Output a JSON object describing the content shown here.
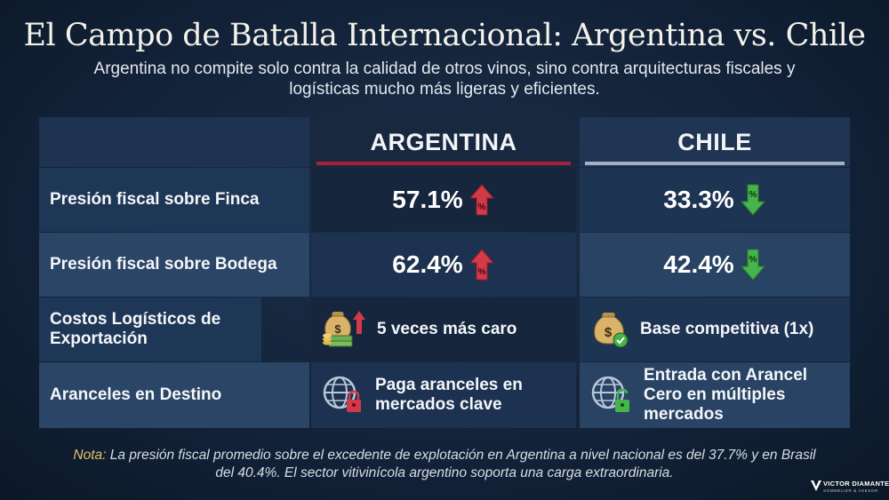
{
  "title": "El Campo de Batalla Internacional: Argentina vs. Chile",
  "subtitle": "Argentina no compite solo contra la calidad de otros vinos, sino contra arquitecturas fiscales y logísticas mucho más ligeras y eficientes.",
  "table": {
    "columns": [
      "ARGENTINA",
      "CHILE"
    ],
    "rows": [
      {
        "label": "Presión fiscal sobre Finca",
        "argentina": {
          "value": "57.1%",
          "icon": "red-up-arrow-percent-icon"
        },
        "chile": {
          "value": "33.3%",
          "icon": "green-down-arrow-percent-icon"
        }
      },
      {
        "label": "Presión fiscal sobre Bodega",
        "argentina": {
          "value": "62.4%",
          "icon": "red-up-arrow-percent-icon"
        },
        "chile": {
          "value": "42.4%",
          "icon": "green-down-arrow-percent-icon"
        }
      },
      {
        "label": "Costos Logísticos de Exportación",
        "argentina": {
          "value": "5 veces más caro",
          "icon": "money-stack-up-arrow-icon"
        },
        "chile": {
          "value": "Base competitiva (1x)",
          "icon": "money-bag-check-icon"
        }
      },
      {
        "label": "Aranceles en Destino",
        "argentina": {
          "value": "Paga aranceles en mercados clave",
          "icon": "globe-locked-icon"
        },
        "chile": {
          "value": "Entrada con Arancel Cero en múltiples mercados",
          "icon": "globe-unlocked-icon"
        }
      }
    ]
  },
  "note": {
    "prefix": "Nota:",
    "text": " La presión fiscal promedio sobre el excedente de explotación en Argentina a nivel nacional es del 37.7% y en Brasil del 40.4%. El sector vitivinícola argentino soporta una carga extraordinaria."
  },
  "logo": {
    "name": "VICTOR DIAMANTE",
    "tagline": "SOMMELIER & ASESOR"
  },
  "colors": {
    "argentina_accent": "#a8213a",
    "chile_accent": "#9fb1c4",
    "up_red": "#d23a4a",
    "down_green": "#45b44a",
    "note_gold": "#e0c46a"
  }
}
